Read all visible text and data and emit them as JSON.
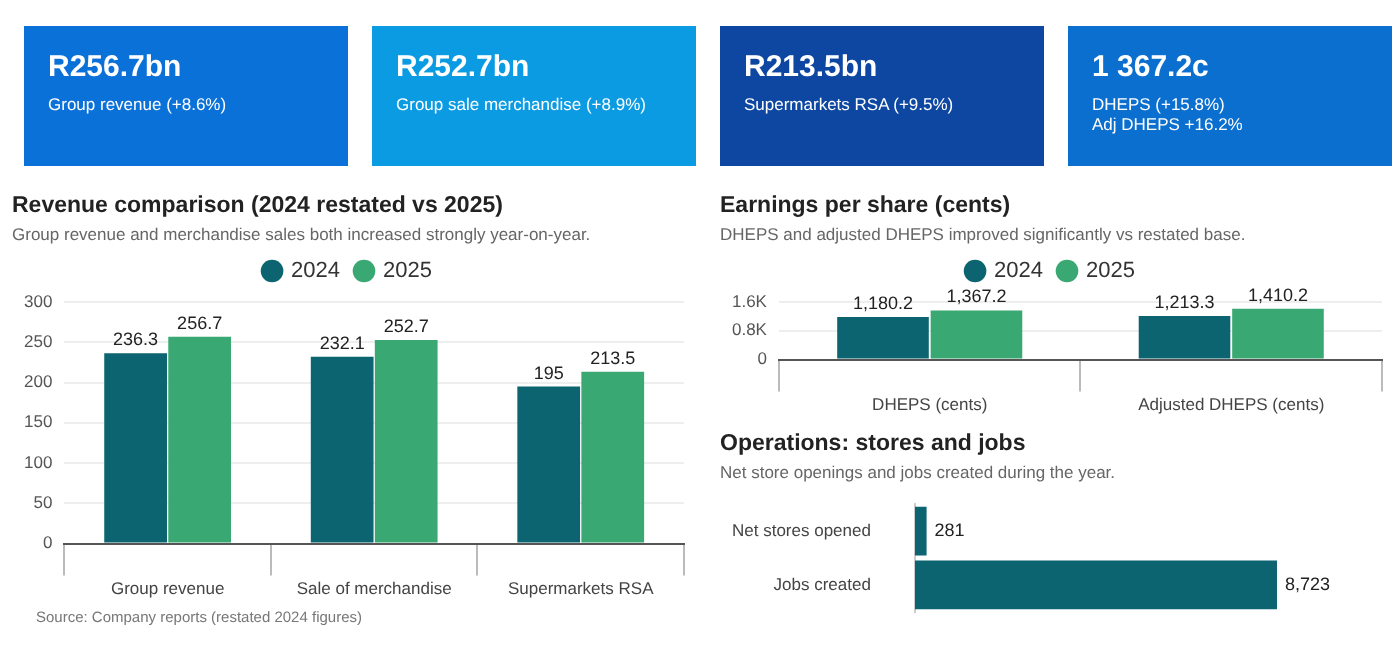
{
  "chart_data": [
    {
      "type": "other",
      "title": "R256.7bn",
      "annotations": [
        "Group revenue (+8.6%)"
      ],
      "color": "#0a71d9"
    },
    {
      "type": "other",
      "title": "R252.7bn",
      "annotations": [
        "Group sale merchandise (+8.9%)"
      ],
      "color": "#0b9be2"
    },
    {
      "type": "other",
      "title": "R213.5bn",
      "annotations": [
        "Supermarkets RSA (+9.5%)"
      ],
      "color": "#0d47a1"
    },
    {
      "type": "other",
      "title": "1 367.2c",
      "annotations": [
        "DHEPS (+15.8%)",
        "Adj DHEPS +16.2%"
      ],
      "color": "#0a6fcf"
    },
    {
      "type": "bar",
      "title": "Revenue comparison (2024 restated vs 2025)",
      "subtitle": "Group revenue and merchandise sales both increased strongly year-on-year.",
      "categories": [
        "Group revenue",
        "Sale of merchandise",
        "Supermarkets RSA"
      ],
      "series": [
        {
          "name": "2024",
          "color": "#0b6470",
          "values": [
            236.3,
            232.1,
            195
          ]
        },
        {
          "name": "2025",
          "color": "#3aa873",
          "values": [
            256.7,
            252.7,
            213.5
          ]
        }
      ],
      "ylim": [
        0,
        300
      ],
      "yticks": [
        0,
        50,
        100,
        150,
        200,
        250,
        300
      ],
      "grid": "y",
      "legend": "top",
      "data_labels": true,
      "annotations": [
        "Source: Company reports (restated 2024 figures)"
      ]
    },
    {
      "type": "bar",
      "title": "Earnings per share (cents)",
      "subtitle": "DHEPS and adjusted DHEPS improved significantly vs restated base.",
      "categories": [
        "DHEPS (cents)",
        "Adjusted DHEPS (cents)"
      ],
      "series": [
        {
          "name": "2024",
          "color": "#0b6470",
          "values": [
            1180.2,
            1213.3
          ],
          "value_labels": [
            "1,180.2",
            "1,213.3"
          ]
        },
        {
          "name": "2025",
          "color": "#3aa873",
          "values": [
            1367.2,
            1410.2
          ],
          "value_labels": [
            "1,367.2",
            "1,410.2"
          ]
        }
      ],
      "ylim": [
        0,
        1600
      ],
      "yticks": [
        0,
        {
          "value": 800,
          "label": "0.8K"
        },
        {
          "value": 1600,
          "label": "1.6K"
        }
      ],
      "grid": "y",
      "legend": "top"
    },
    {
      "type": "bar",
      "orientation": "horizontal",
      "title": "Operations: stores and jobs",
      "subtitle": "Net store openings and jobs created during the year.",
      "categories": [
        "Net stores opened",
        "Jobs created"
      ],
      "values": [
        281,
        8723
      ],
      "value_labels": [
        "281",
        "8,723"
      ],
      "color": "#0b6470",
      "tick_labels": "y"
    }
  ]
}
